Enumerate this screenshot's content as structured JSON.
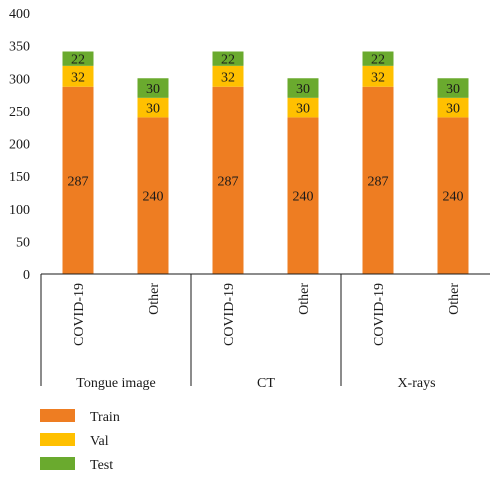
{
  "chart_data": {
    "type": "bar",
    "stacked": true,
    "groups": [
      {
        "name": "Tongue image",
        "categories": [
          "COVID-19",
          "Other"
        ]
      },
      {
        "name": "CT",
        "categories": [
          "COVID-19",
          "Other"
        ]
      },
      {
        "name": "X-rays",
        "categories": [
          "COVID-19",
          "Other"
        ]
      }
    ],
    "series": [
      {
        "name": "Train",
        "color": "#ee7d22",
        "values": [
          287,
          240,
          287,
          240,
          287,
          240
        ]
      },
      {
        "name": "Val",
        "color": "#ffc000",
        "values": [
          32,
          30,
          32,
          30,
          32,
          30
        ]
      },
      {
        "name": "Test",
        "color": "#6aaa2e",
        "values": [
          22,
          30,
          22,
          30,
          22,
          30
        ]
      }
    ],
    "yticks": [
      0,
      50,
      100,
      150,
      200,
      250,
      300,
      350,
      400
    ],
    "ylim": [
      0,
      400
    ],
    "grid": false,
    "legend_position": "bottom-left",
    "title": "",
    "xlabel": "",
    "ylabel": ""
  }
}
